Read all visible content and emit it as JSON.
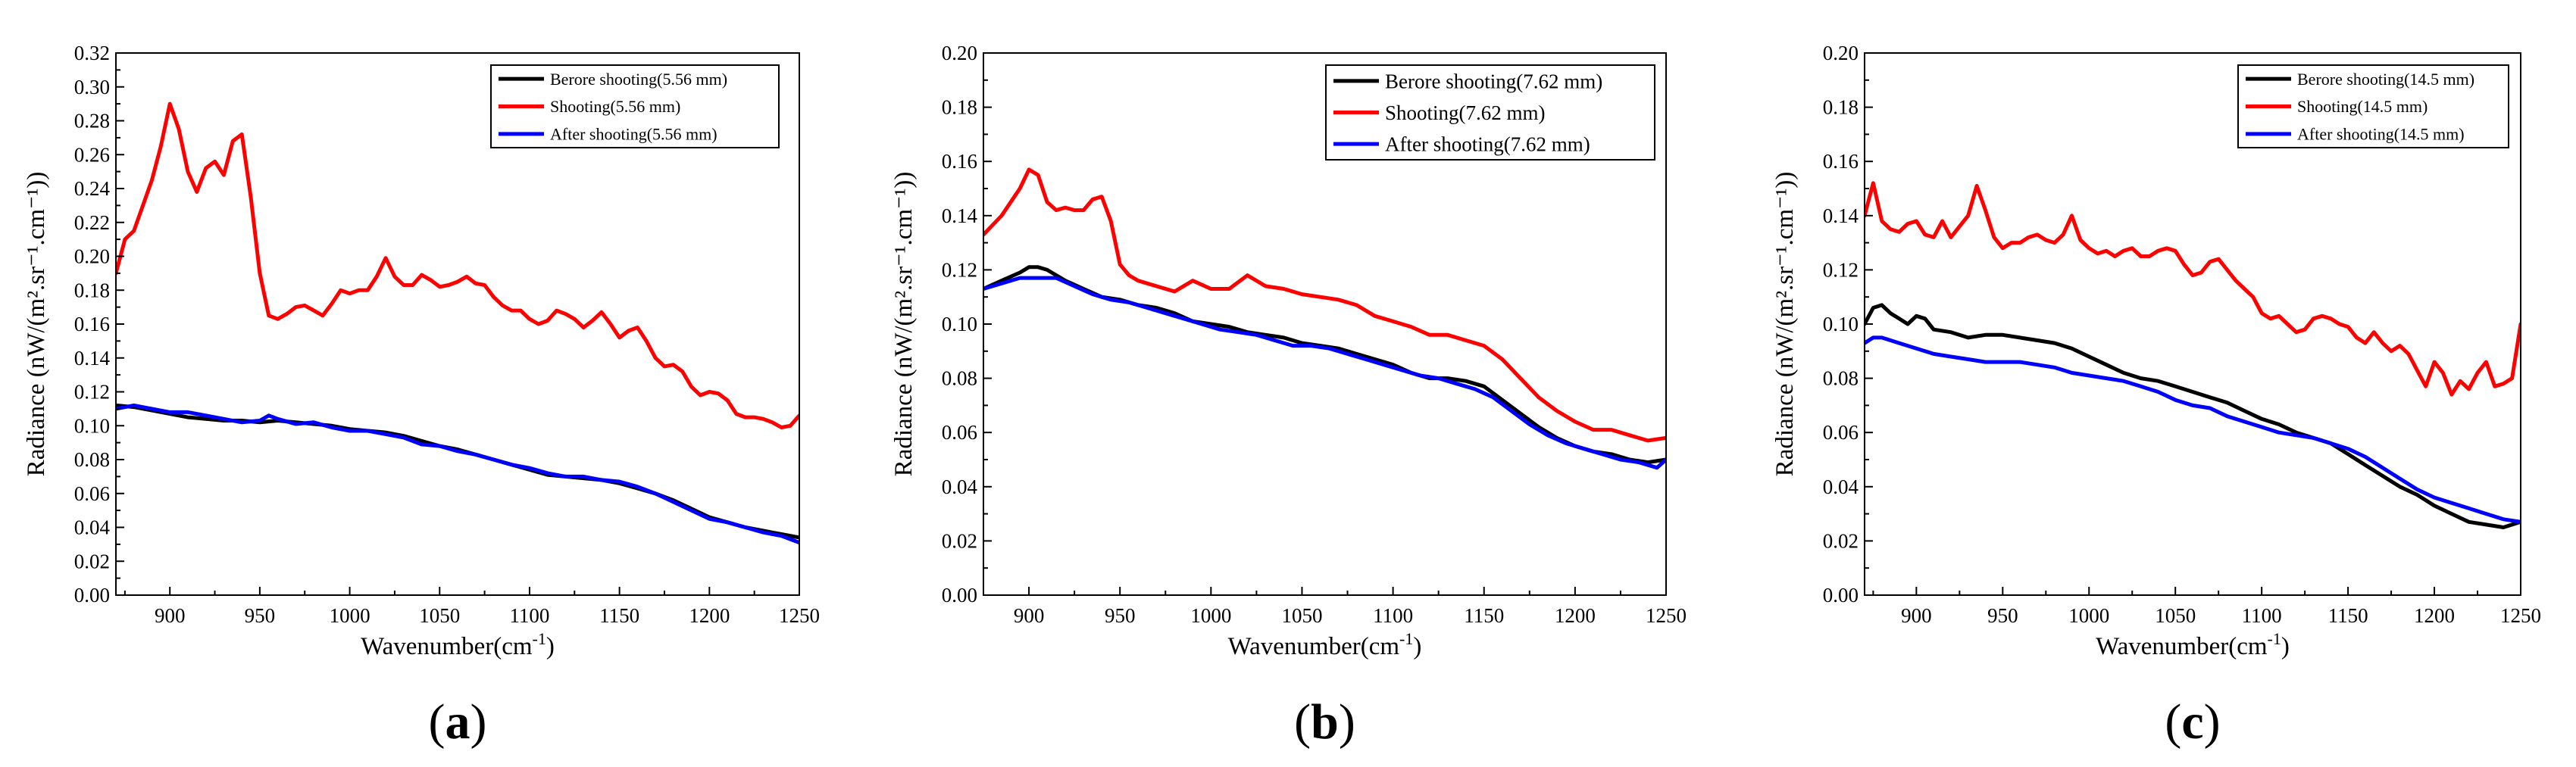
{
  "chart_data": [
    {
      "type": "line",
      "panel_label": "a",
      "xlabel": "Wavenumber(cm",
      "xlabel_sup": "-1",
      "xlabel_end": ")",
      "ylabel": "Radiance (nW/(m².sr⁻¹.cm⁻¹))",
      "xlim": [
        870,
        1250
      ],
      "ylim": [
        0,
        0.32
      ],
      "xticks": [
        900,
        950,
        1000,
        1050,
        1100,
        1150,
        1200,
        1250
      ],
      "yticks": [
        "0.00",
        "0.02",
        "0.04",
        "0.06",
        "0.08",
        "0.10",
        "0.12",
        "0.14",
        "0.16",
        "0.18",
        "0.20",
        "0.22",
        "0.24",
        "0.26",
        "0.28",
        "0.30",
        "0.32"
      ],
      "legend_position": "top-right",
      "series": [
        {
          "name": "Berore shooting(5.56 mm)",
          "color": "#000000",
          "x": [
            870,
            880,
            890,
            900,
            910,
            920,
            930,
            940,
            950,
            960,
            970,
            980,
            990,
            1000,
            1010,
            1020,
            1030,
            1040,
            1050,
            1060,
            1070,
            1080,
            1090,
            1100,
            1110,
            1120,
            1130,
            1140,
            1150,
            1160,
            1170,
            1180,
            1190,
            1200,
            1210,
            1220,
            1230,
            1240,
            1250
          ],
          "y": [
            0.112,
            0.111,
            0.109,
            0.107,
            0.105,
            0.104,
            0.103,
            0.103,
            0.102,
            0.103,
            0.102,
            0.101,
            0.1,
            0.098,
            0.097,
            0.096,
            0.094,
            0.091,
            0.088,
            0.086,
            0.083,
            0.08,
            0.077,
            0.074,
            0.071,
            0.07,
            0.069,
            0.068,
            0.066,
            0.063,
            0.06,
            0.056,
            0.051,
            0.046,
            0.043,
            0.04,
            0.038,
            0.036,
            0.034
          ]
        },
        {
          "name": "Shooting(5.56 mm)",
          "color": "#ff0000",
          "x": [
            870,
            875,
            880,
            885,
            890,
            895,
            900,
            905,
            910,
            915,
            920,
            925,
            930,
            935,
            940,
            945,
            950,
            955,
            960,
            965,
            970,
            975,
            980,
            985,
            990,
            995,
            1000,
            1005,
            1010,
            1015,
            1020,
            1025,
            1030,
            1035,
            1040,
            1045,
            1050,
            1055,
            1060,
            1065,
            1070,
            1075,
            1080,
            1085,
            1090,
            1095,
            1100,
            1105,
            1110,
            1115,
            1120,
            1125,
            1130,
            1135,
            1140,
            1145,
            1150,
            1155,
            1160,
            1165,
            1170,
            1175,
            1180,
            1185,
            1190,
            1195,
            1200,
            1205,
            1210,
            1215,
            1220,
            1225,
            1230,
            1235,
            1240,
            1245,
            1250
          ],
          "y": [
            0.19,
            0.21,
            0.215,
            0.23,
            0.245,
            0.265,
            0.29,
            0.275,
            0.25,
            0.238,
            0.252,
            0.256,
            0.248,
            0.268,
            0.272,
            0.235,
            0.19,
            0.165,
            0.163,
            0.166,
            0.17,
            0.171,
            0.168,
            0.165,
            0.172,
            0.18,
            0.178,
            0.18,
            0.18,
            0.188,
            0.199,
            0.188,
            0.183,
            0.183,
            0.189,
            0.186,
            0.182,
            0.183,
            0.185,
            0.188,
            0.184,
            0.183,
            0.176,
            0.171,
            0.168,
            0.168,
            0.163,
            0.16,
            0.162,
            0.168,
            0.166,
            0.163,
            0.158,
            0.162,
            0.167,
            0.16,
            0.152,
            0.156,
            0.158,
            0.15,
            0.14,
            0.135,
            0.136,
            0.132,
            0.123,
            0.118,
            0.12,
            0.119,
            0.115,
            0.107,
            0.105,
            0.105,
            0.104,
            0.102,
            0.099,
            0.1,
            0.106
          ]
        },
        {
          "name": "After shooting(5.56 mm)",
          "color": "#0000ff",
          "x": [
            870,
            880,
            890,
            900,
            910,
            920,
            930,
            940,
            950,
            955,
            960,
            970,
            980,
            990,
            1000,
            1010,
            1020,
            1030,
            1040,
            1050,
            1060,
            1070,
            1080,
            1090,
            1100,
            1110,
            1120,
            1130,
            1140,
            1150,
            1160,
            1170,
            1180,
            1190,
            1200,
            1210,
            1220,
            1230,
            1240,
            1250
          ],
          "y": [
            0.11,
            0.112,
            0.11,
            0.108,
            0.108,
            0.106,
            0.104,
            0.102,
            0.103,
            0.106,
            0.104,
            0.101,
            0.102,
            0.099,
            0.097,
            0.097,
            0.095,
            0.093,
            0.089,
            0.088,
            0.085,
            0.083,
            0.08,
            0.077,
            0.075,
            0.072,
            0.07,
            0.07,
            0.068,
            0.067,
            0.064,
            0.06,
            0.055,
            0.05,
            0.045,
            0.043,
            0.04,
            0.037,
            0.035,
            0.031
          ]
        }
      ]
    },
    {
      "type": "line",
      "panel_label": "b",
      "xlabel": "Wavenumber(cm",
      "xlabel_sup": "-1",
      "xlabel_end": ")",
      "ylabel": "Radiance (nW/(m².sr⁻¹.cm⁻¹))",
      "xlim": [
        875,
        1250
      ],
      "ylim": [
        0,
        0.2
      ],
      "xticks": [
        900,
        950,
        1000,
        1050,
        1100,
        1150,
        1200,
        1250
      ],
      "yticks": [
        "0.00",
        "0.02",
        "0.04",
        "0.06",
        "0.08",
        "0.10",
        "0.12",
        "0.14",
        "0.16",
        "0.18",
        "0.20"
      ],
      "legend_position": "top-right",
      "series": [
        {
          "name": "Berore shooting(7.62 mm)",
          "color": "#000000",
          "x": [
            875,
            885,
            895,
            900,
            905,
            910,
            920,
            930,
            940,
            950,
            960,
            970,
            980,
            990,
            1000,
            1010,
            1020,
            1030,
            1040,
            1050,
            1060,
            1070,
            1080,
            1090,
            1100,
            1110,
            1120,
            1130,
            1140,
            1150,
            1160,
            1170,
            1180,
            1190,
            1200,
            1210,
            1220,
            1230,
            1240,
            1250
          ],
          "y": [
            0.113,
            0.116,
            0.119,
            0.121,
            0.121,
            0.12,
            0.116,
            0.113,
            0.11,
            0.109,
            0.107,
            0.106,
            0.104,
            0.101,
            0.1,
            0.099,
            0.097,
            0.096,
            0.095,
            0.093,
            0.092,
            0.091,
            0.089,
            0.087,
            0.085,
            0.082,
            0.08,
            0.08,
            0.079,
            0.077,
            0.072,
            0.067,
            0.062,
            0.058,
            0.055,
            0.053,
            0.052,
            0.05,
            0.049,
            0.05
          ]
        },
        {
          "name": "Shooting(7.62 mm)",
          "color": "#ff0000",
          "x": [
            875,
            885,
            895,
            900,
            905,
            910,
            915,
            920,
            925,
            930,
            935,
            940,
            945,
            950,
            955,
            960,
            970,
            980,
            990,
            1000,
            1010,
            1020,
            1030,
            1040,
            1050,
            1060,
            1070,
            1080,
            1090,
            1100,
            1110,
            1120,
            1130,
            1140,
            1150,
            1160,
            1170,
            1180,
            1190,
            1200,
            1210,
            1220,
            1230,
            1240,
            1250
          ],
          "y": [
            0.133,
            0.14,
            0.15,
            0.157,
            0.155,
            0.145,
            0.142,
            0.143,
            0.142,
            0.142,
            0.146,
            0.147,
            0.138,
            0.122,
            0.118,
            0.116,
            0.114,
            0.112,
            0.116,
            0.113,
            0.113,
            0.118,
            0.114,
            0.113,
            0.111,
            0.11,
            0.109,
            0.107,
            0.103,
            0.101,
            0.099,
            0.096,
            0.096,
            0.094,
            0.092,
            0.087,
            0.08,
            0.073,
            0.068,
            0.064,
            0.061,
            0.061,
            0.059,
            0.057,
            0.058
          ]
        },
        {
          "name": "After shooting(7.62 mm)",
          "color": "#0000ff",
          "x": [
            875,
            885,
            895,
            905,
            915,
            925,
            935,
            945,
            955,
            965,
            975,
            985,
            995,
            1005,
            1015,
            1025,
            1035,
            1045,
            1055,
            1065,
            1075,
            1085,
            1095,
            1105,
            1115,
            1125,
            1135,
            1145,
            1155,
            1165,
            1175,
            1185,
            1195,
            1205,
            1215,
            1225,
            1235,
            1245,
            1250
          ],
          "y": [
            0.113,
            0.115,
            0.117,
            0.117,
            0.117,
            0.114,
            0.111,
            0.109,
            0.108,
            0.106,
            0.104,
            0.102,
            0.1,
            0.098,
            0.097,
            0.096,
            0.094,
            0.092,
            0.092,
            0.091,
            0.089,
            0.087,
            0.085,
            0.083,
            0.081,
            0.08,
            0.078,
            0.076,
            0.073,
            0.068,
            0.063,
            0.059,
            0.056,
            0.054,
            0.052,
            0.05,
            0.049,
            0.047,
            0.05
          ]
        }
      ]
    },
    {
      "type": "line",
      "panel_label": "c",
      "xlabel": "Wavenumber(cm",
      "xlabel_sup": "-1",
      "xlabel_end": ")",
      "ylabel": "Radiance (nW/(m².sr⁻¹.cm⁻¹))",
      "xlim": [
        870,
        1250
      ],
      "ylim": [
        0,
        0.2
      ],
      "xticks": [
        900,
        950,
        1000,
        1050,
        1100,
        1150,
        1200,
        1250
      ],
      "yticks": [
        "0.00",
        "0.02",
        "0.04",
        "0.06",
        "0.08",
        "0.10",
        "0.12",
        "0.14",
        "0.16",
        "0.18",
        "0.20"
      ],
      "legend_position": "top-right",
      "series": [
        {
          "name": "Berore shooting(14.5 mm)",
          "color": "#000000",
          "x": [
            870,
            875,
            880,
            885,
            890,
            895,
            900,
            905,
            910,
            920,
            930,
            940,
            950,
            960,
            970,
            980,
            990,
            1000,
            1010,
            1020,
            1030,
            1040,
            1050,
            1060,
            1070,
            1080,
            1090,
            1100,
            1110,
            1120,
            1130,
            1140,
            1150,
            1160,
            1170,
            1180,
            1190,
            1200,
            1210,
            1220,
            1230,
            1240,
            1250
          ],
          "y": [
            0.1,
            0.106,
            0.107,
            0.104,
            0.102,
            0.1,
            0.103,
            0.102,
            0.098,
            0.097,
            0.095,
            0.096,
            0.096,
            0.095,
            0.094,
            0.093,
            0.091,
            0.088,
            0.085,
            0.082,
            0.08,
            0.079,
            0.077,
            0.075,
            0.073,
            0.071,
            0.068,
            0.065,
            0.063,
            0.06,
            0.058,
            0.056,
            0.052,
            0.048,
            0.044,
            0.04,
            0.037,
            0.033,
            0.03,
            0.027,
            0.026,
            0.025,
            0.027
          ]
        },
        {
          "name": "Shooting(14.5 mm)",
          "color": "#ff0000",
          "x": [
            870,
            875,
            880,
            885,
            890,
            895,
            900,
            905,
            910,
            915,
            920,
            925,
            930,
            935,
            940,
            945,
            950,
            955,
            960,
            965,
            970,
            975,
            980,
            985,
            990,
            995,
            1000,
            1005,
            1010,
            1015,
            1020,
            1025,
            1030,
            1035,
            1040,
            1045,
            1050,
            1055,
            1060,
            1065,
            1070,
            1075,
            1080,
            1085,
            1090,
            1095,
            1100,
            1105,
            1110,
            1115,
            1120,
            1125,
            1130,
            1135,
            1140,
            1145,
            1150,
            1155,
            1160,
            1165,
            1170,
            1175,
            1180,
            1185,
            1190,
            1195,
            1200,
            1205,
            1210,
            1215,
            1220,
            1225,
            1230,
            1235,
            1240,
            1245,
            1250
          ],
          "y": [
            0.14,
            0.152,
            0.138,
            0.135,
            0.134,
            0.137,
            0.138,
            0.133,
            0.132,
            0.138,
            0.132,
            0.136,
            0.14,
            0.151,
            0.142,
            0.132,
            0.128,
            0.13,
            0.13,
            0.132,
            0.133,
            0.131,
            0.13,
            0.133,
            0.14,
            0.131,
            0.128,
            0.126,
            0.127,
            0.125,
            0.127,
            0.128,
            0.125,
            0.125,
            0.127,
            0.128,
            0.127,
            0.122,
            0.118,
            0.119,
            0.123,
            0.124,
            0.12,
            0.116,
            0.113,
            0.11,
            0.104,
            0.102,
            0.103,
            0.1,
            0.097,
            0.098,
            0.102,
            0.103,
            0.102,
            0.1,
            0.099,
            0.095,
            0.093,
            0.097,
            0.093,
            0.09,
            0.092,
            0.089,
            0.083,
            0.077,
            0.086,
            0.082,
            0.074,
            0.079,
            0.076,
            0.082,
            0.086,
            0.077,
            0.078,
            0.08,
            0.1
          ]
        },
        {
          "name": "After shooting(14.5 mm)",
          "color": "#0000ff",
          "x": [
            870,
            875,
            880,
            885,
            890,
            900,
            910,
            920,
            930,
            940,
            950,
            960,
            970,
            980,
            990,
            1000,
            1010,
            1020,
            1030,
            1040,
            1050,
            1060,
            1070,
            1080,
            1090,
            1100,
            1110,
            1120,
            1130,
            1140,
            1150,
            1160,
            1170,
            1180,
            1190,
            1200,
            1210,
            1220,
            1230,
            1240,
            1250
          ],
          "y": [
            0.093,
            0.095,
            0.095,
            0.094,
            0.093,
            0.091,
            0.089,
            0.088,
            0.087,
            0.086,
            0.086,
            0.086,
            0.085,
            0.084,
            0.082,
            0.081,
            0.08,
            0.079,
            0.077,
            0.075,
            0.072,
            0.07,
            0.069,
            0.066,
            0.064,
            0.062,
            0.06,
            0.059,
            0.058,
            0.056,
            0.054,
            0.051,
            0.047,
            0.043,
            0.039,
            0.036,
            0.034,
            0.032,
            0.03,
            0.028,
            0.027
          ]
        }
      ]
    }
  ]
}
